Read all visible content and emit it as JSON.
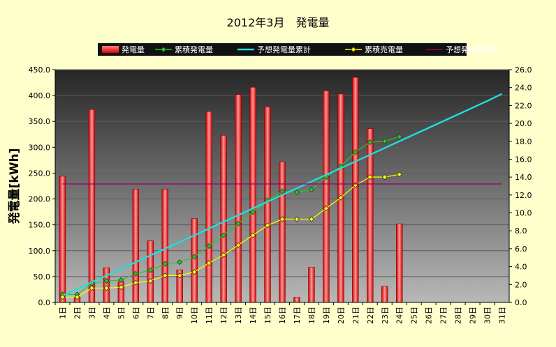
{
  "chart_data": {
    "type": "bar",
    "title": "2012年3月　発電量",
    "ylabel": "発電量[kWh]",
    "ylim": [
      0,
      450
    ],
    "y2lim": [
      0,
      26
    ],
    "yticks": [
      "0.0",
      "50.0",
      "100.0",
      "150.0",
      "200.0",
      "250.0",
      "300.0",
      "350.0",
      "400.0",
      "450.0"
    ],
    "y2ticks": [
      "0.0",
      "2.0",
      "4.0",
      "6.0",
      "8.0",
      "10.0",
      "12.0",
      "14.0",
      "16.0",
      "18.0",
      "20.0",
      "22.0",
      "24.0",
      "26.0"
    ],
    "categories": [
      "1日",
      "2日",
      "3日",
      "4日",
      "5日",
      "6日",
      "7日",
      "8日",
      "9日",
      "10日",
      "11日",
      "12日",
      "13日",
      "14日",
      "15日",
      "16日",
      "17日",
      "18日",
      "19日",
      "20日",
      "21日",
      "22日",
      "23日",
      "24日",
      "25日",
      "26日",
      "27日",
      "28日",
      "29日",
      "30日",
      "31日"
    ],
    "legend_position": "top",
    "grid": true,
    "series": [
      {
        "name": "発電量",
        "kind": "bar",
        "axis": "left",
        "color": "#ff2020",
        "values": [
          244,
          10,
          373,
          67,
          40,
          219,
          119,
          219,
          63,
          162,
          369,
          323,
          402,
          416,
          378,
          272,
          10,
          68,
          409,
          403,
          435,
          336,
          31,
          152,
          null,
          null,
          null,
          null,
          null,
          null,
          null
        ]
      },
      {
        "name": "累積発電量",
        "kind": "line",
        "axis": "right",
        "color": "#22cc22",
        "marker": "diamond",
        "values": [
          0.9,
          0.9,
          2.1,
          2.4,
          2.5,
          3.2,
          3.6,
          4.3,
          4.5,
          5.1,
          6.3,
          7.5,
          8.8,
          10.1,
          11.4,
          12.4,
          12.3,
          12.6,
          14.0,
          15.2,
          16.8,
          17.9,
          18.0,
          18.5,
          null,
          null,
          null,
          null,
          null,
          null,
          null
        ]
      },
      {
        "name": "予想発電量累計",
        "kind": "line",
        "axis": "right",
        "color": "#22dddd",
        "values": [
          0.75,
          1.5,
          2.25,
          3.0,
          3.75,
          4.5,
          5.25,
          6.0,
          6.75,
          7.5,
          8.25,
          9.0,
          9.75,
          10.5,
          11.25,
          12.0,
          12.75,
          13.5,
          14.25,
          15.0,
          15.75,
          16.5,
          17.25,
          18.0,
          18.75,
          19.5,
          20.25,
          21.0,
          21.75,
          22.5,
          23.3
        ]
      },
      {
        "name": "累積売電量",
        "kind": "line",
        "axis": "right",
        "color": "#ffff00",
        "marker": "diamond",
        "values": [
          0.6,
          0.6,
          1.6,
          1.6,
          1.7,
          2.2,
          2.4,
          3.0,
          3.0,
          3.4,
          4.4,
          5.3,
          6.4,
          7.5,
          8.6,
          9.3,
          9.3,
          9.3,
          10.5,
          11.7,
          13.1,
          14.0,
          14.0,
          14.3,
          null,
          null,
          null,
          null,
          null,
          null,
          null
        ]
      },
      {
        "name": "予想発電量日割",
        "kind": "line",
        "axis": "left",
        "color": "#990066",
        "values": [
          229,
          229,
          229,
          229,
          229,
          229,
          229,
          229,
          229,
          229,
          229,
          229,
          229,
          229,
          229,
          229,
          229,
          229,
          229,
          229,
          229,
          229,
          229,
          229,
          229,
          229,
          229,
          229,
          229,
          229,
          229
        ]
      }
    ]
  }
}
